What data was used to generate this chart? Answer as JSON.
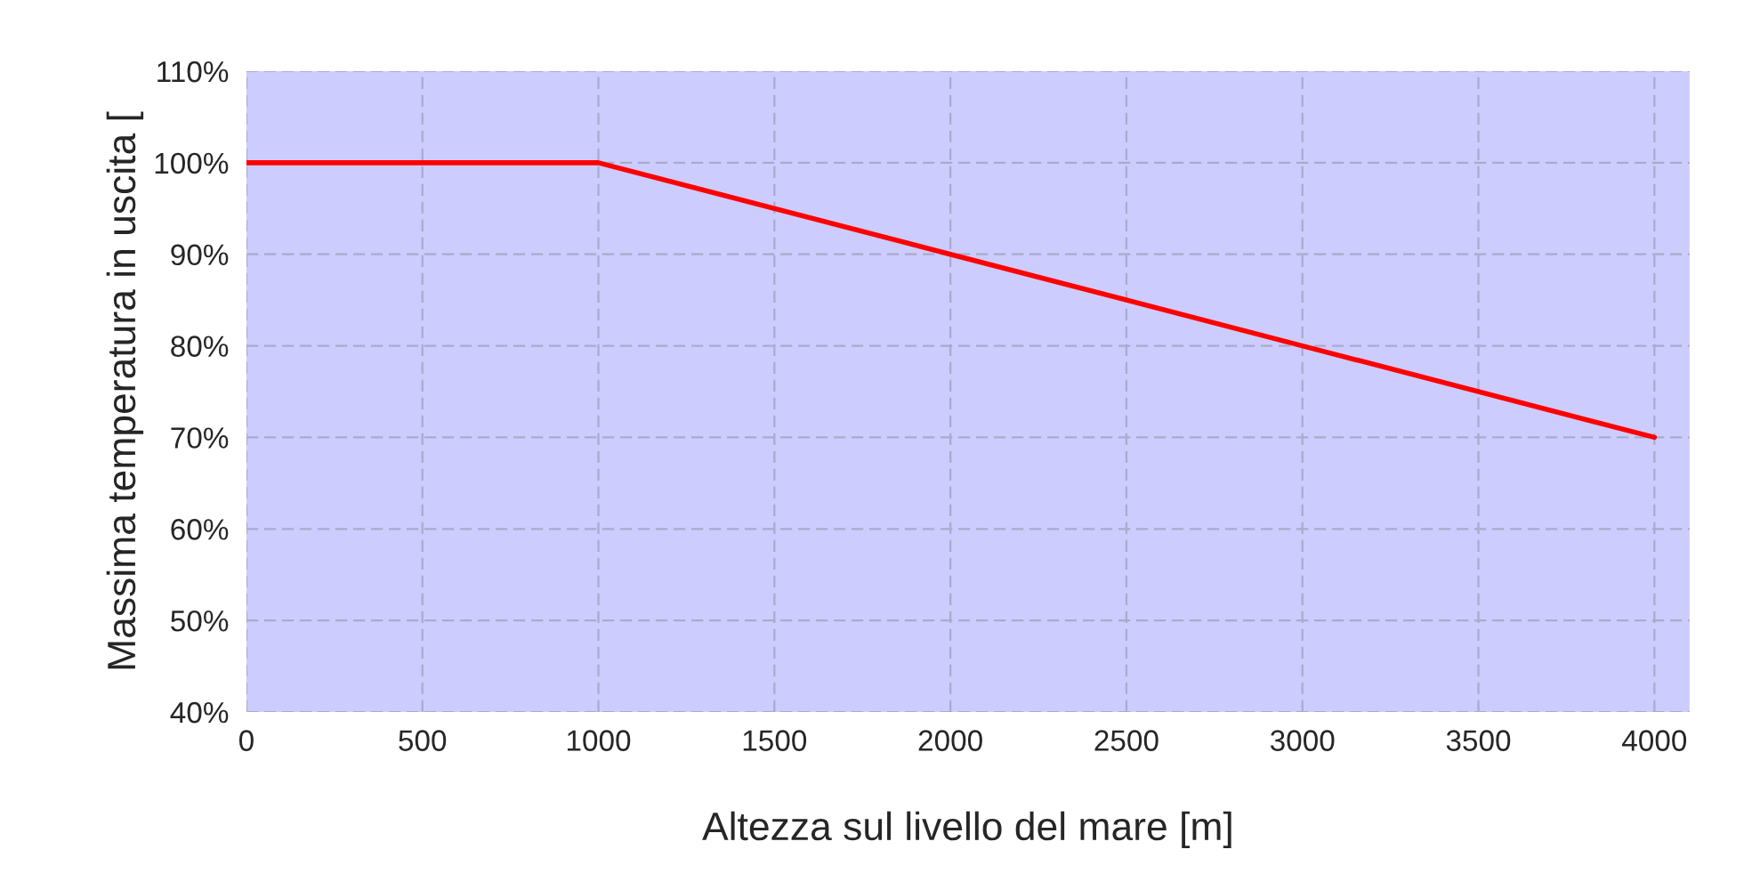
{
  "chart_data": {
    "type": "line",
    "xlabel": "Altezza sul livello del mare [m]",
    "ylabel": "Massima temperatura in uscita [",
    "x": [
      0,
      1000,
      2000,
      3000,
      4000
    ],
    "series": [
      {
        "color": "#ff0000",
        "values": [
          100,
          100,
          90,
          80,
          70
        ]
      }
    ],
    "xlim": [
      0,
      4100
    ],
    "xticks": [
      0,
      500,
      1000,
      1500,
      2000,
      2500,
      3000,
      3500,
      4000
    ],
    "ylim": [
      40,
      110
    ],
    "yticks": [
      {
        "value": 40,
        "label": "40%"
      },
      {
        "value": 50,
        "label": "50%"
      },
      {
        "value": 60,
        "label": "60%"
      },
      {
        "value": 70,
        "label": "70%"
      },
      {
        "value": 80,
        "label": "80%"
      },
      {
        "value": 90,
        "label": "90%"
      },
      {
        "value": 100,
        "label": "100%"
      },
      {
        "value": 110,
        "label": "110%"
      }
    ],
    "grid": true,
    "legend": false,
    "marker": "none",
    "line_style": "solid"
  }
}
